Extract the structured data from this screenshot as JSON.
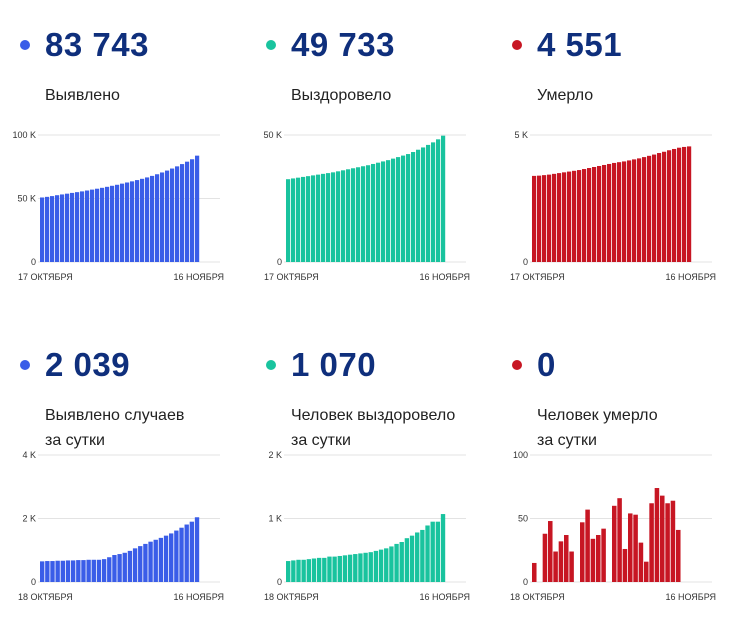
{
  "panels": [
    {
      "value": "83 743",
      "label_lines": [
        "Выявлено"
      ],
      "color": "#3a5de8",
      "chart_data": {
        "type": "bar",
        "x_start_label": "17 ОКТЯБРЯ",
        "x_end_label": "16 НОЯБРЯ",
        "ylim": [
          0,
          100000
        ],
        "yticks": [
          0,
          50000,
          100000
        ],
        "ytick_labels": [
          "0",
          "50 K",
          "100 K"
        ],
        "values": [
          50800,
          51300,
          51900,
          52600,
          53200,
          53800,
          54400,
          55000,
          55600,
          56300,
          57000,
          57700,
          58400,
          59200,
          60000,
          60800,
          61700,
          62600,
          63500,
          64500,
          65500,
          66600,
          67800,
          69100,
          70500,
          72000,
          73600,
          75300,
          77100,
          79000,
          80900,
          83743
        ]
      }
    },
    {
      "value": "49 733",
      "label_lines": [
        "Выздоровело"
      ],
      "color": "#19c39e",
      "chart_data": {
        "type": "bar",
        "x_start_label": "17 ОКТЯБРЯ",
        "x_end_label": "16 НОЯБРЯ",
        "ylim": [
          0,
          50000
        ],
        "yticks": [
          0,
          50000
        ],
        "ytick_labels": [
          "0",
          "50 K"
        ],
        "values": [
          32600,
          32900,
          33200,
          33500,
          33800,
          34100,
          34400,
          34700,
          35000,
          35300,
          35700,
          36100,
          36500,
          36900,
          37300,
          37700,
          38100,
          38600,
          39100,
          39600,
          40100,
          40700,
          41300,
          41900,
          42500,
          43300,
          44200,
          45100,
          46100,
          47100,
          48300,
          49733
        ]
      }
    },
    {
      "value": "4 551",
      "label_lines": [
        "Умерло"
      ],
      "color": "#c71623",
      "chart_data": {
        "type": "bar",
        "x_start_label": "17 ОКТЯБРЯ",
        "x_end_label": "16 НОЯБРЯ",
        "ylim": [
          0,
          5000
        ],
        "yticks": [
          0,
          5000
        ],
        "ytick_labels": [
          "0",
          "5 K"
        ],
        "values": [
          3390,
          3400,
          3420,
          3440,
          3470,
          3500,
          3530,
          3560,
          3590,
          3620,
          3660,
          3700,
          3740,
          3780,
          3820,
          3860,
          3900,
          3930,
          3960,
          4000,
          4040,
          4080,
          4130,
          4180,
          4230,
          4290,
          4340,
          4400,
          4450,
          4500,
          4530,
          4551
        ]
      }
    },
    {
      "value": "2 039",
      "label_lines": [
        "Выявлено случаев",
        "за сутки"
      ],
      "color": "#3a5de8",
      "chart_data": {
        "type": "bar",
        "x_start_label": "18 ОКТЯБРЯ",
        "x_end_label": "16 НОЯБРЯ",
        "ylim": [
          0,
          4000
        ],
        "yticks": [
          0,
          2000,
          4000
        ],
        "ytick_labels": [
          "0",
          "2 K",
          "4 K"
        ],
        "values": [
          650,
          660,
          660,
          670,
          670,
          680,
          680,
          690,
          690,
          700,
          700,
          700,
          720,
          780,
          850,
          880,
          920,
          980,
          1060,
          1130,
          1200,
          1270,
          1330,
          1390,
          1460,
          1530,
          1620,
          1710,
          1810,
          1900,
          2039
        ]
      }
    },
    {
      "value": "1 070",
      "label_lines": [
        "Человек выздоровело",
        "за сутки"
      ],
      "color": "#19c39e",
      "chart_data": {
        "type": "bar",
        "x_start_label": "18 ОКТЯБРЯ",
        "x_end_label": "16 НОЯБРЯ",
        "ylim": [
          0,
          2000
        ],
        "yticks": [
          0,
          1000,
          2000
        ],
        "ytick_labels": [
          "0",
          "1 K",
          "2 K"
        ],
        "values": [
          330,
          340,
          350,
          350,
          360,
          370,
          380,
          380,
          400,
          400,
          410,
          420,
          430,
          440,
          450,
          460,
          470,
          490,
          510,
          530,
          560,
          600,
          630,
          690,
          730,
          780,
          820,
          890,
          950,
          950,
          1070
        ]
      }
    },
    {
      "value": "0",
      "label_lines": [
        "Человек умерло",
        "за сутки"
      ],
      "color": "#c71623",
      "chart_data": {
        "type": "bar",
        "x_start_label": "18 ОКТЯБРЯ",
        "x_end_label": "16 НОЯБРЯ",
        "ylim": [
          0,
          100
        ],
        "yticks": [
          0,
          50,
          100
        ],
        "ytick_labels": [
          "0",
          "50",
          "100"
        ],
        "values": [
          15,
          0,
          38,
          48,
          24,
          32,
          37,
          24,
          0,
          47,
          57,
          34,
          37,
          42,
          0,
          60,
          66,
          26,
          54,
          53,
          31,
          16,
          62,
          74,
          68,
          62,
          64,
          41,
          0,
          0
        ]
      }
    }
  ]
}
